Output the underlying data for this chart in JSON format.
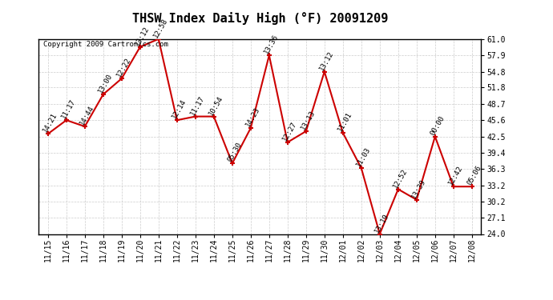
{
  "title": "THSW Index Daily High (°F) 20091209",
  "copyright": "Copyright 2009 Cartronics.com",
  "x_labels": [
    "11/15",
    "11/16",
    "11/17",
    "11/18",
    "11/19",
    "11/20",
    "11/21",
    "11/22",
    "11/23",
    "11/24",
    "11/25",
    "11/26",
    "11/27",
    "11/28",
    "11/29",
    "11/30",
    "12/01",
    "12/02",
    "12/03",
    "12/04",
    "12/05",
    "12/06",
    "12/07",
    "12/08"
  ],
  "y_values": [
    43.0,
    45.6,
    44.4,
    50.5,
    53.5,
    59.5,
    61.0,
    45.6,
    46.3,
    46.3,
    37.4,
    44.1,
    57.9,
    41.4,
    43.5,
    54.8,
    43.2,
    36.5,
    24.0,
    32.5,
    30.5,
    42.5,
    33.0,
    33.0
  ],
  "time_labels": [
    "14:21",
    "11:17",
    "14:44",
    "13:00",
    "12:22",
    "13:12",
    "12:58",
    "12:14",
    "11:17",
    "10:54",
    "05:30",
    "14:23",
    "13:36",
    "12:27",
    "13:13",
    "13:12",
    "11:01",
    "11:03",
    "13:19",
    "12:52",
    "13:39",
    "00:00",
    "12:42",
    "05:06"
  ],
  "ylim": [
    24.0,
    61.0
  ],
  "yticks": [
    24.0,
    27.1,
    30.2,
    33.2,
    36.3,
    39.4,
    42.5,
    45.6,
    48.7,
    51.8,
    54.8,
    57.9,
    61.0
  ],
  "line_color": "#cc0000",
  "marker_color": "#cc0000",
  "bg_color": "#ffffff",
  "grid_color": "#cccccc",
  "title_fontsize": 11,
  "label_fontsize": 6.5,
  "tick_fontsize": 7,
  "copyright_fontsize": 6.5
}
